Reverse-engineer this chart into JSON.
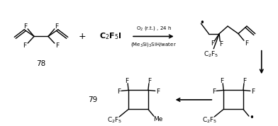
{
  "background": "#ffffff",
  "fig_width": 3.92,
  "fig_height": 1.78,
  "dpi": 100,
  "compound78_label": "78",
  "compound79_label": "79",
  "reagent": "C$_2$F$_5$I",
  "conditions_top": "O$_2$ (r.t.) , 24 h",
  "conditions_bottom": "(Me$_3$Si)$_3$SiH/water",
  "fs": 6.5,
  "fs_label": 7.5,
  "fs_bold": 8
}
